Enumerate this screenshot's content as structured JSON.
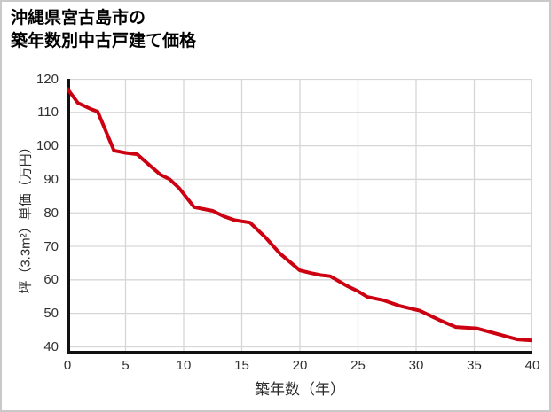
{
  "page": {
    "title_line1": "沖縄県宮古島市の",
    "title_line2": "築年数別中古戸建て価格"
  },
  "chart_data": {
    "type": "line",
    "title": "沖縄県宮古島市の築年数別中古戸建て価格",
    "xlabel": "築年数（年）",
    "ylabel": "坪（3.3m²）単価（万円）",
    "xlim": [
      0,
      40
    ],
    "ylim": [
      38,
      120
    ],
    "x_ticks": [
      0,
      5,
      10,
      15,
      20,
      25,
      30,
      35,
      40
    ],
    "y_ticks": [
      40,
      50,
      60,
      70,
      80,
      90,
      100,
      110,
      120
    ],
    "grid": true,
    "legend": "none",
    "series": [
      {
        "color": "#cc0011",
        "points": [
          [
            0,
            117
          ],
          [
            0.9,
            112.8
          ],
          [
            2,
            111
          ],
          [
            2.6,
            110.2
          ],
          [
            4,
            98.6
          ],
          [
            5,
            97.9
          ],
          [
            6,
            97.5
          ],
          [
            7,
            94.4
          ],
          [
            8,
            91.4
          ],
          [
            8.8,
            90
          ],
          [
            9.6,
            87.4
          ],
          [
            10.9,
            81.7
          ],
          [
            12.5,
            80.6
          ],
          [
            13.5,
            78.9
          ],
          [
            14.4,
            77.8
          ],
          [
            15.7,
            77.1
          ],
          [
            17,
            72.8
          ],
          [
            18.3,
            67.8
          ],
          [
            20,
            62.8
          ],
          [
            21,
            62
          ],
          [
            21.8,
            61.4
          ],
          [
            22.6,
            61.1
          ],
          [
            24,
            58.3
          ],
          [
            25,
            56.6
          ],
          [
            25.8,
            54.9
          ],
          [
            27.2,
            53.9
          ],
          [
            28.5,
            52.3
          ],
          [
            29.2,
            51.7
          ],
          [
            30.3,
            50.8
          ],
          [
            32,
            48
          ],
          [
            33.4,
            45.9
          ],
          [
            35.2,
            45.5
          ],
          [
            36.5,
            44.3
          ],
          [
            38.7,
            42.2
          ],
          [
            40,
            41.9
          ]
        ]
      }
    ]
  },
  "colors": {
    "line": "#cc0011",
    "grid": "#d6d6d6",
    "axis": "#111111",
    "tick_text": "#303030",
    "frame_border": "#c9c9c9",
    "background": "#ffffff"
  }
}
